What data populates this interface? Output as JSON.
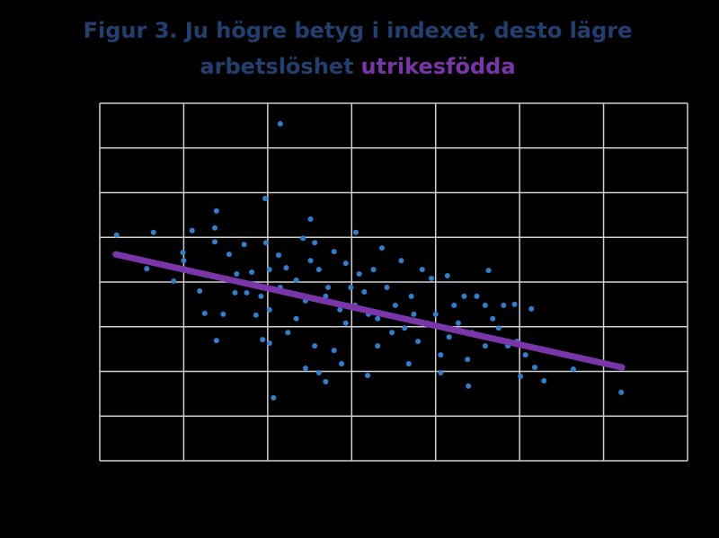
{
  "chart_data": {
    "type": "scatter",
    "title": {
      "line1": "Figur 3. Ju högre betyg i indexet, desto lägre",
      "line2": "arbetslöshet",
      "highlight": "utrikesfödda"
    },
    "title_color": "#22406f",
    "highlight_color": "#7a35a8",
    "xlim": [
      0,
      7
    ],
    "ylim": [
      0,
      8
    ],
    "xticks": [
      0,
      1,
      2,
      3,
      4,
      5,
      6,
      7
    ],
    "yticks": [
      0,
      1,
      2,
      3,
      4,
      5,
      6,
      7,
      8
    ],
    "grid": true,
    "series": [
      {
        "color": "#2f7fcf",
        "x": [
          0.2,
          0.64,
          0.3,
          0.56,
          0.88,
          0.99,
          1.1,
          1.39,
          1.37,
          1.37,
          1.19,
          1.25,
          1.39,
          1.47,
          1.54,
          1.61,
          1.72,
          1.81,
          1.86,
          1.97,
          2.15,
          2.07,
          1.94,
          2.02,
          1.98,
          2.13,
          2.22,
          2.34,
          2.42,
          2.51,
          2.51,
          2.61,
          2.72,
          2.79,
          2.93,
          3.05,
          2.45,
          2.34,
          2.24,
          2.45,
          2.61,
          2.69,
          2.79,
          2.93,
          3.04,
          3.15,
          3.2,
          3.19,
          3.26,
          3.36,
          3.42,
          3.52,
          3.59,
          3.63,
          3.71,
          3.79,
          3.84,
          3.95,
          4.0,
          4.06,
          4.14,
          4.16,
          4.27,
          4.34,
          4.39,
          4.43,
          4.59,
          4.63,
          4.68,
          4.81,
          4.94,
          4.97,
          5.01,
          5.07,
          5.14,
          5.18,
          5.29,
          5.64,
          6.21,
          4.06,
          3.68,
          3.31,
          2.88,
          2.56,
          2.15,
          2.02,
          1.92,
          1.75,
          1.63,
          1.0,
          2.56,
          2.69,
          2.86,
          2.99,
          3.09,
          3.31,
          3.48,
          3.74,
          3.9,
          4.22,
          4.49,
          4.75,
          4.86,
          4.38,
          4.59,
          2.02
        ],
        "values": [
          5.05,
          5.11,
          4.58,
          4.3,
          4.02,
          4.66,
          5.15,
          5.59,
          5.21,
          4.9,
          3.8,
          3.3,
          2.69,
          3.28,
          4.62,
          3.76,
          4.84,
          4.22,
          3.26,
          5.87,
          7.54,
          1.41,
          2.71,
          2.63,
          4.88,
          4.6,
          4.32,
          4.04,
          4.98,
          5.41,
          4.48,
          4.28,
          3.88,
          4.68,
          4.42,
          5.11,
          3.58,
          3.18,
          2.87,
          2.07,
          1.97,
          1.77,
          2.47,
          3.08,
          3.48,
          3.78,
          3.28,
          1.91,
          4.28,
          4.76,
          3.88,
          3.48,
          4.48,
          2.97,
          3.68,
          2.67,
          4.28,
          4.08,
          3.28,
          2.37,
          4.14,
          2.77,
          3.08,
          3.68,
          1.67,
          2.87,
          3.48,
          4.26,
          3.18,
          3.48,
          3.5,
          2.67,
          1.89,
          2.37,
          3.4,
          2.09,
          1.79,
          2.05,
          1.53,
          1.97,
          2.17,
          2.57,
          2.17,
          2.57,
          3.88,
          3.38,
          3.68,
          3.76,
          4.18,
          4.48,
          4.88,
          3.68,
          3.38,
          3.88,
          4.18,
          3.18,
          2.87,
          3.28,
          3.08,
          3.48,
          3.68,
          2.97,
          2.57,
          2.27,
          2.57,
          4.28
        ]
      }
    ],
    "trendline": {
      "x": [
        0.19,
        6.22
      ],
      "values": [
        4.62,
        2.09
      ],
      "color": "#7a35a8"
    }
  }
}
